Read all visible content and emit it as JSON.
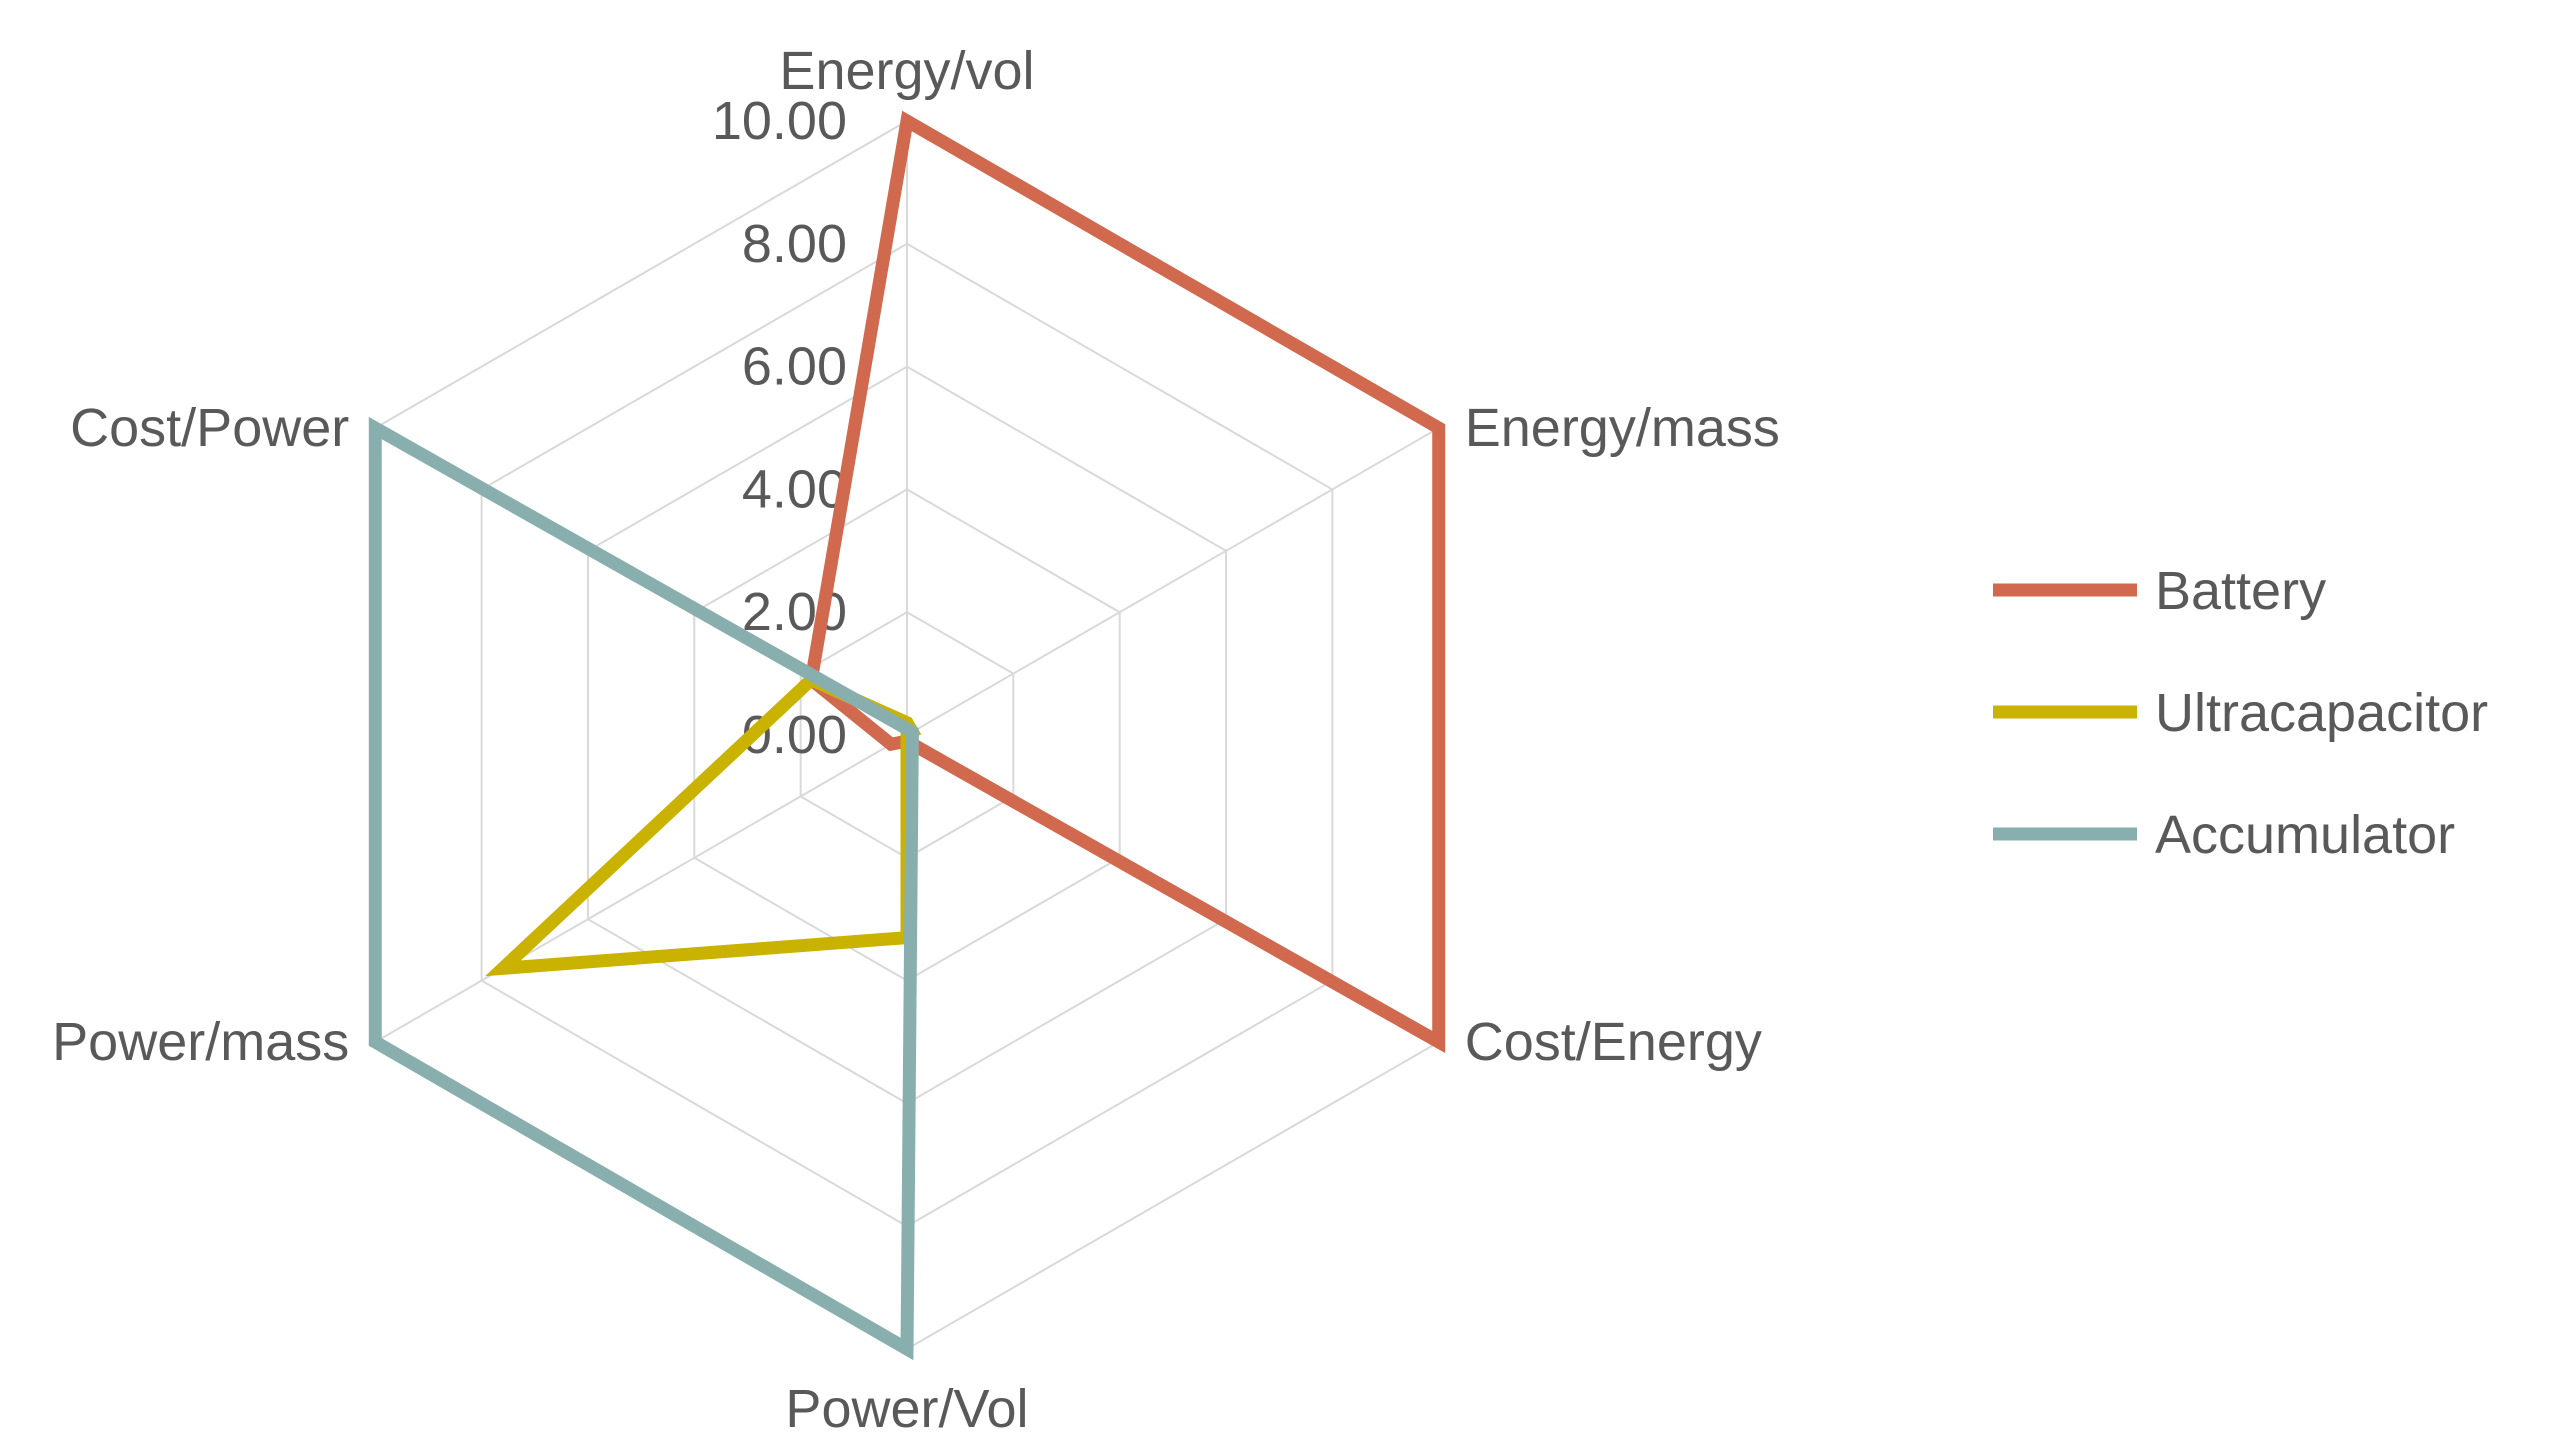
{
  "chart_data": {
    "type": "radar",
    "title": "",
    "axes": [
      "Energy/vol",
      "Energy/mass",
      "Cost/Energy",
      "Power/Vol",
      "Power/mass",
      "Cost/Power"
    ],
    "rlim": [
      0,
      10
    ],
    "ticks": [
      "0.00",
      "2.00",
      "4.00",
      "6.00",
      "8.00",
      "10.00"
    ],
    "tick_values": [
      0,
      2,
      4,
      6,
      8,
      10
    ],
    "grid": true,
    "legend_position": "right",
    "series": [
      {
        "name": "Battery",
        "color": "#d0694e",
        "values": [
          10,
          10,
          10,
          0.1,
          0.3,
          1.8
        ]
      },
      {
        "name": "Ultracapacitor",
        "color": "#c9b300",
        "values": [
          0.2,
          0.1,
          0,
          3.3,
          7.6,
          1.8
        ]
      },
      {
        "name": "Accumulator",
        "color": "#88aeae",
        "values": [
          0.1,
          0.1,
          0.1,
          10,
          10,
          10
        ]
      }
    ]
  }
}
